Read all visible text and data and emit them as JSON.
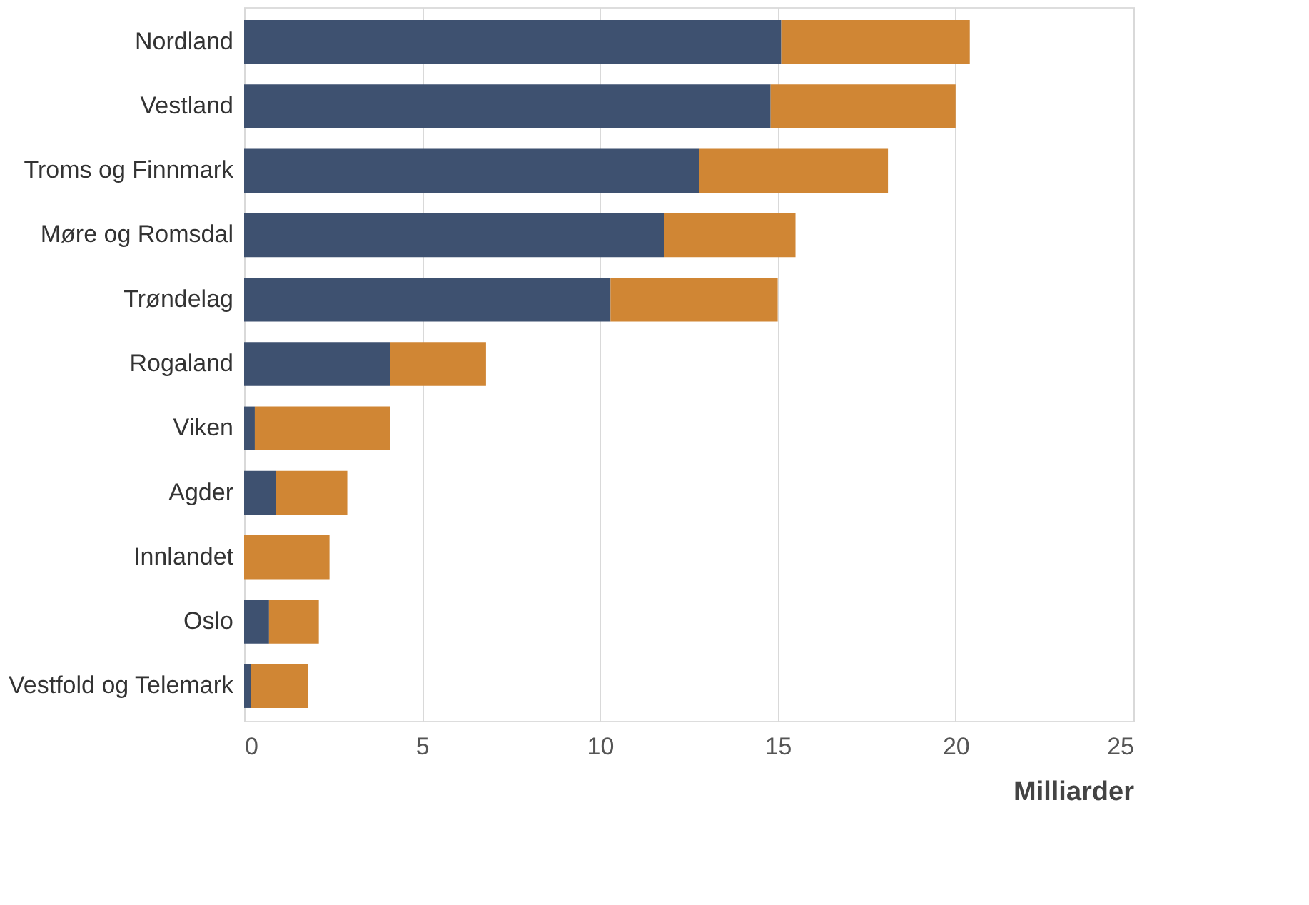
{
  "chart_data": {
    "type": "bar",
    "orientation": "horizontal",
    "stacked": true,
    "xlabel": "Milliarder",
    "categories": [
      "Nordland",
      "Vestland",
      "Troms og Finnmark",
      "Møre og Romsdal",
      "Trøndelag",
      "Rogaland",
      "Viken",
      "Agder",
      "Innlandet",
      "Oslo",
      "Vestfold og Telemark"
    ],
    "series": [
      {
        "color": "#3e5170",
        "values": [
          15.1,
          14.8,
          12.8,
          11.8,
          10.3,
          4.1,
          0.3,
          0.9,
          0,
          0.7,
          0.2
        ]
      },
      {
        "color": "#d08634",
        "values": [
          5.3,
          5.2,
          5.3,
          3.7,
          4.7,
          2.7,
          3.8,
          2.0,
          2.4,
          1.4,
          1.6
        ]
      }
    ],
    "xlim": [
      0,
      25
    ],
    "xticks": [
      0,
      5,
      10,
      15,
      20,
      25
    ],
    "grid": "x"
  }
}
